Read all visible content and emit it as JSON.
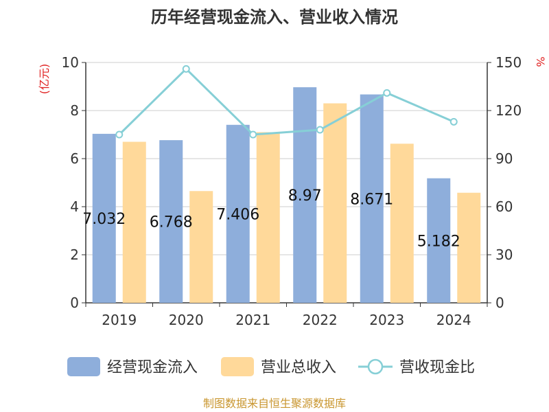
{
  "chart_data": {
    "type": "bar",
    "title": "历年经营现金流入、营业收入情况",
    "categories": [
      "2019",
      "2020",
      "2021",
      "2022",
      "2023",
      "2024"
    ],
    "series": [
      {
        "name": "经营现金流入",
        "kind": "bar",
        "axis": "left",
        "color": "#8EAEDB",
        "values": [
          7.032,
          6.768,
          7.406,
          8.97,
          8.671,
          5.182
        ],
        "labels": [
          "7.032",
          "6.768",
          "7.406",
          "8.97",
          "8.671",
          "5.182"
        ]
      },
      {
        "name": "营业总收入",
        "kind": "bar",
        "axis": "left",
        "color": "#FFD99A",
        "values": [
          6.7,
          4.65,
          7.1,
          8.3,
          6.62,
          4.58
        ]
      },
      {
        "name": "营收现金比",
        "kind": "line",
        "axis": "right",
        "color": "#86CFD6",
        "values": [
          105,
          146,
          105,
          108,
          131,
          113
        ]
      }
    ],
    "y_left": {
      "label": "(亿元)",
      "min": 0,
      "max": 10,
      "ticks": [
        0,
        2,
        4,
        6,
        8,
        10
      ]
    },
    "y_right": {
      "label": "%",
      "min": 0,
      "max": 150,
      "ticks": [
        0,
        30,
        60,
        90,
        120,
        150
      ]
    },
    "grid": true,
    "legend_position": "bottom",
    "source": "制图数据来自恒生聚源数据库",
    "colors": {
      "axis_label": "#E02020",
      "source": "#C9962F",
      "grid": "#CCCCCC",
      "axis": "#333333"
    }
  }
}
